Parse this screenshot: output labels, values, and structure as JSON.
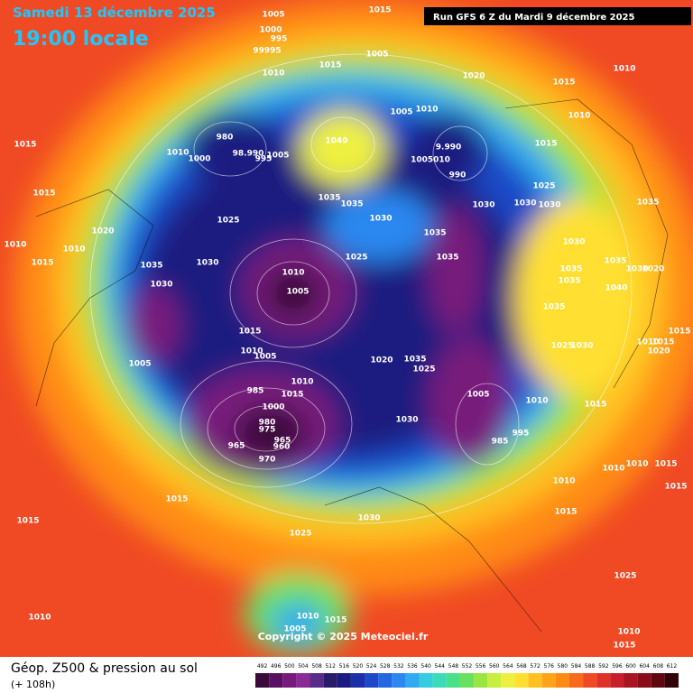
{
  "header": {
    "date": "Samedi 13 décembre 2025",
    "time": "19:00 locale",
    "run": "Run GFS 6 Z du Mardi 9 décembre 2025"
  },
  "copyright": "Copyright © 2025 Meteociel.fr",
  "legend": {
    "title": "Géop. Z500 & pression au sol",
    "lead": "(+ 108h)",
    "values": [
      492,
      496,
      500,
      504,
      508,
      512,
      516,
      520,
      524,
      528,
      532,
      536,
      540,
      544,
      548,
      552,
      556,
      560,
      564,
      568,
      572,
      576,
      580,
      584,
      588,
      592,
      596,
      600,
      604,
      608,
      612
    ],
    "colors": [
      "#3a0a3a",
      "#5a1060",
      "#781a7c",
      "#8a2a96",
      "#5a2a8a",
      "#2a1a6a",
      "#1a1a80",
      "#1c2fa8",
      "#1f48c8",
      "#2266e0",
      "#2a88f0",
      "#30aaf0",
      "#34cce0",
      "#3adcb8",
      "#48e088",
      "#6ae060",
      "#9ae640",
      "#c8ee40",
      "#eef040",
      "#ffe030",
      "#ffc020",
      "#ffa418",
      "#ff8a14",
      "#f86a1c",
      "#f04a24",
      "#e0302a",
      "#c8202a",
      "#a81422",
      "#880c1a",
      "#600812",
      "#300408"
    ]
  },
  "isobar_labels": [
    "1005",
    "1000",
    "995",
    "99995",
    "1015",
    "1005",
    "1015",
    "1010",
    "1020",
    "1015",
    "1010",
    "1005",
    "1010",
    "1010",
    "1015",
    "980",
    "1010",
    "1000",
    "98.990",
    "995",
    "1005",
    "1040",
    "9.990",
    "1005010",
    "990",
    "1015",
    "1015",
    "1025",
    "1035",
    "1035",
    "1035",
    "1030",
    "1030",
    "1030",
    "1025",
    "1030",
    "1020",
    "1010",
    "1010",
    "1035",
    "1030",
    "1035",
    "1025",
    "1030",
    "1035",
    "1015",
    "1035",
    "1030",
    "1020",
    "1035",
    "1010",
    "1035",
    "1040",
    "1030",
    "1005",
    "1035",
    "1015",
    "1015",
    "1010",
    "1015",
    "1020",
    "1030",
    "1025",
    "1010",
    "1005",
    "1005",
    "1020",
    "1035",
    "1025",
    "1010",
    "1015",
    "985",
    "1000",
    "980",
    "975",
    "1005",
    "1010",
    "1015",
    "1030",
    "995",
    "985",
    "965",
    "965",
    "960",
    "970",
    "1010",
    "1015",
    "1010",
    "1015",
    "1010",
    "1015",
    "1030",
    "1015",
    "1015",
    "1025",
    "1025",
    "1010",
    "1010",
    "1015",
    "1005",
    "1010",
    "1015"
  ]
}
